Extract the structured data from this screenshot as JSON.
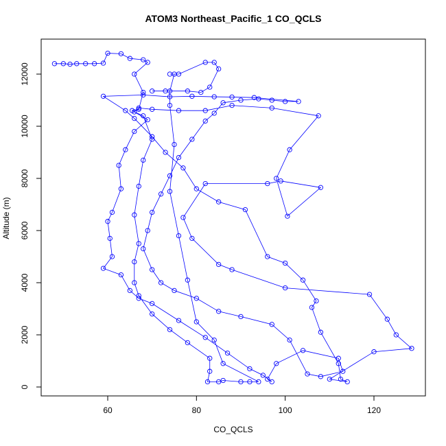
{
  "chart_data": {
    "type": "line",
    "title": "ATOM3 Northeast_Pacific_1 CO_QCLS",
    "x_label": "CO_QCLS",
    "y_label": "Altitude (m)",
    "xlim": [
      45,
      131.6
    ],
    "ylim": [
      -342,
      13342
    ],
    "xticks": [
      60,
      80,
      100,
      120
    ],
    "yticks": [
      0,
      2000,
      4000,
      6000,
      8000,
      10000,
      12000
    ],
    "color": "#0000ff",
    "x": [
      48,
      50,
      51.5,
      53,
      55,
      57,
      59,
      60,
      63,
      65,
      68,
      69,
      66,
      68,
      67,
      65.5,
      69,
      66,
      64,
      62.5,
      63,
      61,
      60,
      60.5,
      61,
      59,
      63,
      65,
      67,
      70,
      76,
      82,
      87,
      92,
      95,
      97,
      96,
      98,
      104,
      112,
      113,
      108,
      105,
      101,
      97,
      90,
      85,
      80,
      75,
      72,
      70,
      68,
      69,
      70,
      72,
      74,
      76,
      79,
      82,
      84,
      86,
      90,
      94,
      97,
      100,
      103,
      93,
      88,
      84,
      79,
      74,
      68,
      59,
      64,
      66,
      70,
      73,
      77,
      80,
      85,
      91,
      96,
      100,
      104,
      107,
      106,
      108,
      112,
      112.5,
      114,
      110,
      120,
      128.5,
      125,
      123,
      119,
      100,
      88,
      85,
      79,
      77,
      82,
      96,
      99,
      108,
      100.5,
      98,
      101,
      107.5,
      97,
      88,
      82,
      76,
      70,
      67,
      66,
      68,
      70,
      68,
      67,
      66,
      67,
      66,
      66,
      67,
      70,
      74,
      78,
      83,
      83,
      82.5,
      85,
      86,
      90,
      92,
      94,
      86,
      84,
      80,
      78,
      76,
      74,
      75,
      74,
      74,
      75,
      74,
      76,
      82,
      84,
      85,
      83,
      81,
      78,
      73,
      70
    ],
    "values": [
      12400,
      12400,
      12380,
      12400,
      12400,
      12400,
      12420,
      12800,
      12780,
      12600,
      12550,
      12450,
      12000,
      11300,
      10650,
      10600,
      10250,
      9800,
      9100,
      8500,
      7600,
      6700,
      6350,
      5700,
      5000,
      4550,
      4300,
      3700,
      3400,
      3200,
      2550,
      1900,
      1300,
      700,
      450,
      200,
      300,
      900,
      1400,
      1100,
      600,
      400,
      500,
      1800,
      2400,
      2700,
      2900,
      3400,
      3700,
      4000,
      4500,
      5300,
      6000,
      6700,
      7400,
      8100,
      8800,
      9500,
      10200,
      10500,
      10900,
      11000,
      11050,
      11000,
      10950,
      10950,
      11100,
      11120,
      11130,
      11150,
      11130,
      11200,
      11150,
      10600,
      10300,
      9600,
      9000,
      8400,
      7600,
      7100,
      6800,
      5000,
      4750,
      4100,
      3300,
      3050,
      2100,
      900,
      300,
      200,
      300,
      1350,
      1480,
      2000,
      2600,
      3550,
      3800,
      4500,
      4700,
      5700,
      6500,
      7800,
      7800,
      7900,
      7650,
      6550,
      8000,
      9100,
      10400,
      10700,
      10800,
      10600,
      10600,
      10650,
      10700,
      10550,
      10400,
      9500,
      8700,
      7700,
      6600,
      5500,
      4800,
      4000,
      3500,
      2800,
      2200,
      1700,
      1100,
      600,
      200,
      200,
      250,
      200,
      200,
      200,
      900,
      1800,
      2500,
      4100,
      5800,
      7500,
      9300,
      10800,
      11350,
      12000,
      12000,
      12000,
      12450,
      12450,
      12200,
      11500,
      11300,
      11350,
      11350,
      11350
    ]
  }
}
